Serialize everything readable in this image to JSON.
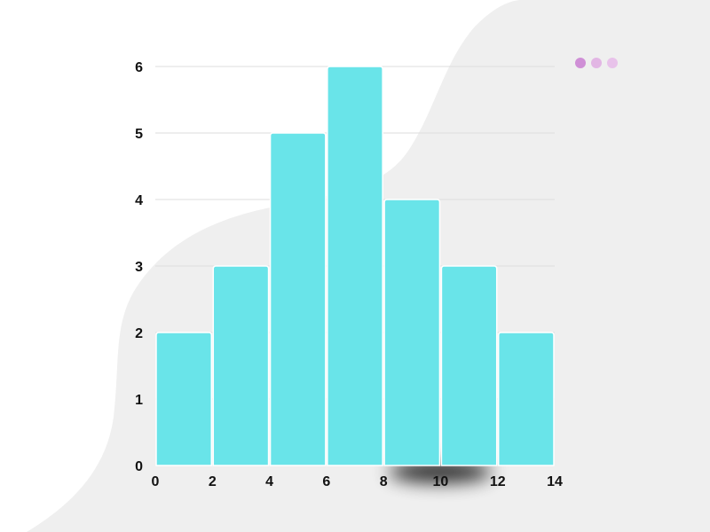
{
  "window_dots": {
    "colors": [
      "#cf8fd6",
      "#e2b6e4",
      "#e8c2ea"
    ]
  },
  "colors": {
    "bar_fill": "#69e4e9",
    "bar_edge": "#ffffff",
    "grid": "#dcdcdc",
    "background_blob": "#efefef",
    "axis_text": "#111111"
  },
  "chart_data": {
    "type": "bar",
    "title": "",
    "xlabel": "",
    "ylabel": "",
    "bins": [
      [
        0,
        2
      ],
      [
        2,
        4
      ],
      [
        4,
        6
      ],
      [
        6,
        8
      ],
      [
        8,
        10
      ],
      [
        10,
        12
      ],
      [
        12,
        14
      ]
    ],
    "values": [
      2,
      3,
      5,
      6,
      4,
      3,
      2
    ],
    "xlim": [
      0,
      14
    ],
    "ylim": [
      0,
      6
    ],
    "x_ticks": [
      "0",
      "2",
      "4",
      "6",
      "8",
      "10",
      "12",
      "14"
    ],
    "y_ticks": [
      "0",
      "1",
      "2",
      "3",
      "4",
      "5",
      "6"
    ],
    "grid": "horizontal"
  }
}
